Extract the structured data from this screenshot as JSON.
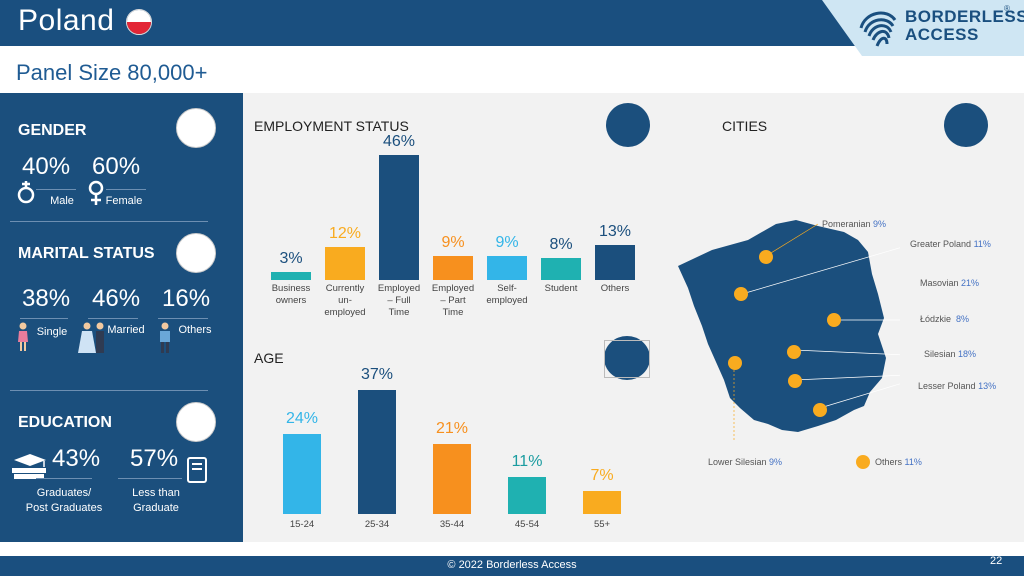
{
  "header": {
    "title": "Poland",
    "logo_line1": "BORDERLESS",
    "logo_line2": "ACCESS",
    "logo_reg": "®"
  },
  "subtitle": "Panel Size 80,000+",
  "gender": {
    "title": "GENDER",
    "male_pct": "40%",
    "female_pct": "60%",
    "male_label": "Male",
    "female_label": "Female"
  },
  "marital": {
    "title": "MARITAL STATUS",
    "single_pct": "38%",
    "married_pct": "46%",
    "others_pct": "16%",
    "single_label": "Single",
    "married_label": "Married",
    "others_label": "Others"
  },
  "education": {
    "title": "EDUCATION",
    "grad_pct": "43%",
    "less_pct": "57%",
    "grad_label_1": "Graduates/",
    "grad_label_2": "Post Graduates",
    "less_label_1": "Less than",
    "less_label_2": "Graduate"
  },
  "employment": {
    "title": "EMPLOYMENT STATUS",
    "bars": [
      {
        "value": 3,
        "text": "3%",
        "label": [
          "Business",
          "owners"
        ],
        "color": "#1fb1b1"
      },
      {
        "value": 12,
        "text": "12%",
        "label": [
          "Currently",
          "un-",
          "employed"
        ],
        "color": "#f9ab1f"
      },
      {
        "value": 46,
        "text": "46%",
        "label": [
          "Employed",
          "– Full",
          "Time"
        ],
        "color": "#1b4f7d"
      },
      {
        "value": 9,
        "text": "9%",
        "label": [
          "Employed",
          "– Part",
          "Time"
        ],
        "color": "#f7901e"
      },
      {
        "value": 9,
        "text": "9%",
        "label": [
          "Self-",
          "employed"
        ],
        "color": "#33b5e8"
      },
      {
        "value": 8,
        "text": "8%",
        "label": [
          "Student"
        ],
        "color": "#1fb1b1"
      },
      {
        "value": 13,
        "text": "13%",
        "label": [
          "Others"
        ],
        "color": "#1b4f7d"
      }
    ]
  },
  "age": {
    "title": "AGE",
    "bars": [
      {
        "value": 24,
        "text": "24%",
        "label": "15-24",
        "color": "#33b5e8"
      },
      {
        "value": 37,
        "text": "37%",
        "label": "25-34",
        "color": "#1b4f7d"
      },
      {
        "value": 21,
        "text": "21%",
        "label": "35-44",
        "color": "#f7901e"
      },
      {
        "value": 11,
        "text": "11%",
        "label": "45-54",
        "color": "#1fb1b1"
      },
      {
        "value": 7,
        "text": "7%",
        "label": "55+",
        "color": "#f9ab1f"
      }
    ]
  },
  "cities": {
    "title": "CITIES",
    "items": [
      {
        "name": "Pomeranian",
        "pct": "9%"
      },
      {
        "name": "Greater Poland",
        "pct": "11%"
      },
      {
        "name": "Masovian",
        "pct": "21%"
      },
      {
        "name": "Łódzkie",
        "pct": "8%"
      },
      {
        "name": "Silesian",
        "pct": "18%"
      },
      {
        "name": "Lesser Poland",
        "pct": "13%"
      },
      {
        "name": "Lower Silesian",
        "pct": "9%"
      },
      {
        "name": "Others",
        "pct": "11%"
      }
    ]
  },
  "footer": {
    "copyright": "© 2022 Borderless Access",
    "page": "22"
  },
  "colors": {
    "navy": "#1b4f7d",
    "orange": "#f7901e",
    "yellow": "#f9ab1f",
    "teal": "#1fb1b1",
    "sky": "#33b5e8"
  }
}
